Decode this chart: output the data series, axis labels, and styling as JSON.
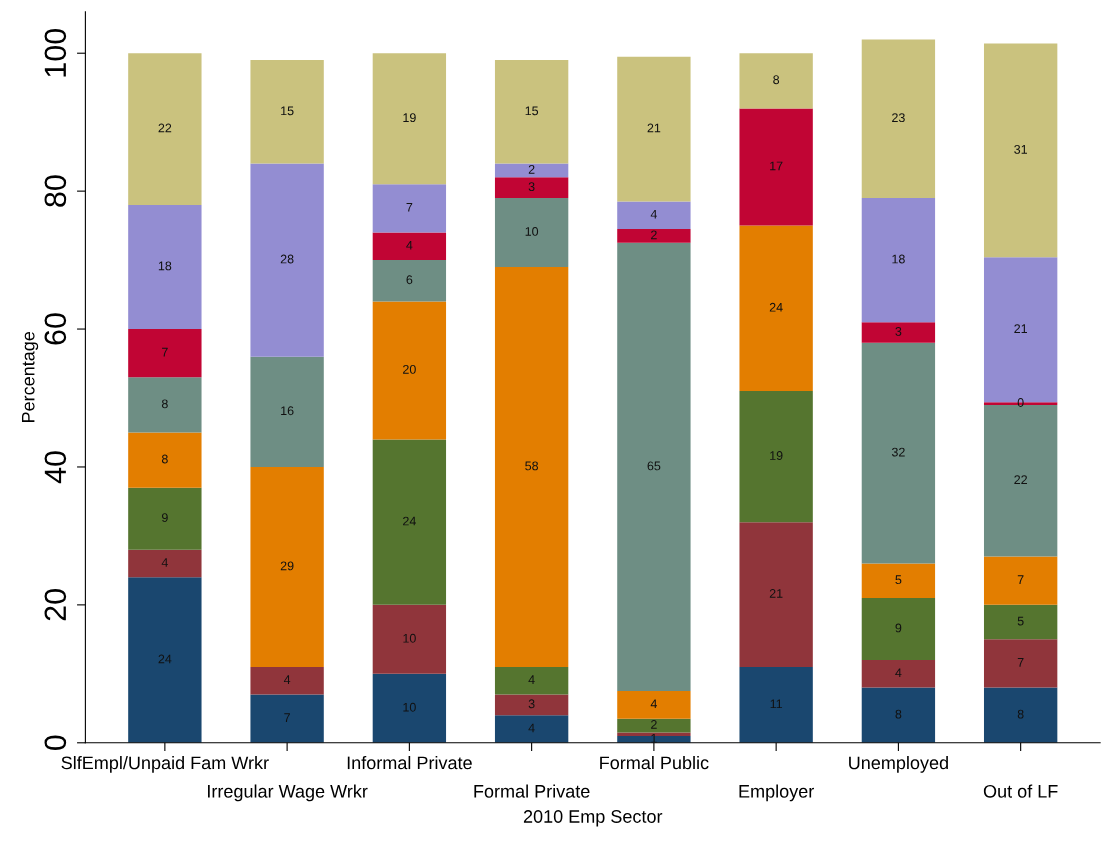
{
  "chart_data": {
    "type": "bar",
    "stacked": true,
    "xlabel": "2010 Emp Sector",
    "ylabel": "Percentage",
    "categories": [
      "SlfEmpl/Unpaid Fam Wrkr",
      "Irregular Wage Wrkr",
      "Informal Private",
      "Formal Private",
      "Formal Public",
      "Employer",
      "Unemployed",
      "Out of LF"
    ],
    "series": [
      {
        "color": "#1a476f",
        "values": [
          24,
          7,
          10,
          4,
          1,
          11,
          8,
          8
        ],
        "value_labels": [
          "24",
          "7",
          "10",
          "4",
          "1",
          "11",
          "8",
          "8"
        ]
      },
      {
        "color": "#90353b",
        "values": [
          4,
          4,
          10,
          3,
          0.5,
          21,
          4,
          7
        ],
        "value_labels": [
          "4",
          "4",
          "10",
          "3",
          null,
          "21",
          "4",
          "7"
        ]
      },
      {
        "color": "#55752f",
        "values": [
          9,
          0,
          24,
          4,
          2,
          19,
          9,
          5
        ],
        "value_labels": [
          "9",
          null,
          "24",
          "4",
          "2",
          "19",
          "9",
          "5"
        ]
      },
      {
        "color": "#e37e00",
        "values": [
          8,
          29,
          20,
          58,
          4,
          24,
          5,
          7
        ],
        "value_labels": [
          "8",
          "29",
          "20",
          "58",
          "4",
          "24",
          "5",
          "7"
        ]
      },
      {
        "color": "#6e8e84",
        "values": [
          8,
          16,
          6,
          10,
          65,
          0,
          32,
          22
        ],
        "value_labels": [
          "8",
          "16",
          "6",
          "10",
          "65",
          null,
          "32",
          "22"
        ]
      },
      {
        "color": "#c10534",
        "values": [
          7,
          0,
          4,
          3,
          2,
          17,
          3,
          0.4
        ],
        "value_labels": [
          "7",
          null,
          "4",
          "3",
          "2",
          "17",
          "3",
          "0"
        ]
      },
      {
        "color": "#938dd2",
        "values": [
          18,
          28,
          7,
          2,
          4,
          0,
          18,
          21
        ],
        "value_labels": [
          "18",
          "28",
          "7",
          "2",
          "4",
          null,
          "18",
          "21"
        ]
      },
      {
        "color": "#cac27e",
        "values": [
          22,
          15,
          19,
          15,
          21,
          8,
          23,
          31
        ],
        "value_labels": [
          "22",
          "15",
          "19",
          "15",
          "21",
          "8",
          "23",
          "31"
        ]
      }
    ],
    "ylim": [
      0,
      106
    ],
    "yticks": [
      0,
      20,
      40,
      60,
      80,
      100
    ],
    "grid": false
  }
}
